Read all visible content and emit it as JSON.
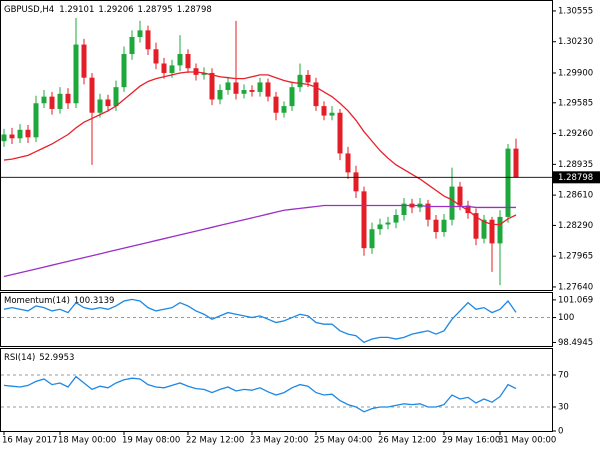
{
  "chart_data": [
    {
      "type": "candlestick",
      "symbol": "GBPUSD,H4",
      "categories": [
        "16 May 2017",
        null,
        null,
        null,
        null,
        null,
        null,
        "18 May 00:00",
        null,
        null,
        null,
        null,
        null,
        null,
        null,
        "19 May 08:00",
        null,
        null,
        null,
        null,
        null,
        null,
        null,
        "22 May 12:00",
        null,
        null,
        null,
        null,
        null,
        null,
        null,
        "23 May 20:00",
        null,
        null,
        null,
        null,
        null,
        null,
        null,
        "25 May 04:00",
        null,
        null,
        null,
        null,
        null,
        null,
        null,
        "26 May 12:00",
        null,
        null,
        null,
        null,
        null,
        null,
        null,
        "29 May 16:00",
        null,
        null,
        null,
        null,
        null,
        null,
        "31 May 00:00",
        null,
        null
      ],
      "open": [
        1.2918,
        1.2925,
        1.2921,
        1.293,
        1.2922,
        1.2958,
        1.2965,
        1.2952,
        1.2968,
        1.2958,
        1.302,
        1.2985,
        1.2948,
        1.2962,
        1.2955,
        1.2975,
        1.301,
        1.3028,
        1.3035,
        1.3015,
        1.3,
        1.299,
        1.2998,
        1.301,
        1.2995,
        1.2988,
        1.299,
        1.2962,
        1.2972,
        1.298,
        1.2968,
        1.2972,
        1.297,
        1.298,
        1.2965,
        1.2948,
        1.2955,
        1.2975,
        1.2988,
        1.298,
        1.2955,
        1.2945,
        1.2948,
        1.2905,
        1.2885,
        1.2865,
        1.2805,
        1.2825,
        1.283,
        1.2832,
        1.284,
        1.2852,
        1.2848,
        1.2852,
        1.2835,
        1.2822,
        1.2835,
        1.287,
        1.285,
        1.2842,
        1.2815,
        1.2835,
        1.281,
        1.2838,
        1.29101
      ],
      "high": [
        1.2931,
        1.2932,
        1.2936,
        1.2935,
        1.2966,
        1.2972,
        1.297,
        1.2975,
        1.2974,
        1.3048,
        1.3026,
        1.299,
        1.2968,
        1.2967,
        1.2982,
        1.3018,
        1.3035,
        1.3045,
        1.304,
        1.3022,
        1.3006,
        1.3004,
        1.303,
        1.3015,
        1.3,
        1.2996,
        1.2995,
        1.2978,
        1.2986,
        1.3045,
        1.2978,
        1.2977,
        1.2985,
        1.2984,
        1.297,
        1.296,
        1.2981,
        1.3,
        1.2993,
        1.2985,
        1.296,
        1.2955,
        1.2952,
        1.2912,
        1.2892,
        1.287,
        1.2832,
        1.2836,
        1.2838,
        1.2846,
        1.2858,
        1.2857,
        1.2858,
        1.2856,
        1.284,
        1.2841,
        1.289,
        1.2875,
        1.2855,
        1.2847,
        1.284,
        1.2838,
        1.2845,
        1.2915,
        1.29206
      ],
      "low": [
        1.2912,
        1.2915,
        1.2916,
        1.2916,
        1.2917,
        1.2953,
        1.2946,
        1.2947,
        1.2952,
        1.2953,
        1.2978,
        1.2893,
        1.2943,
        1.2949,
        1.295,
        1.297,
        1.3004,
        1.3022,
        1.3009,
        1.2994,
        1.2984,
        1.2985,
        1.2992,
        1.299,
        1.2982,
        1.2983,
        1.2956,
        1.2957,
        1.2967,
        1.2962,
        1.2963,
        1.2965,
        1.2965,
        1.296,
        1.294,
        1.2943,
        1.295,
        1.297,
        1.2975,
        1.295,
        1.294,
        1.294,
        1.2898,
        1.2878,
        1.2858,
        1.2797,
        1.2799,
        1.2819,
        1.2825,
        1.2826,
        1.2834,
        1.2842,
        1.2843,
        1.2828,
        1.2815,
        1.2817,
        1.2829,
        1.2845,
        1.2836,
        1.2808,
        1.281,
        1.278,
        1.2766,
        1.2832,
        1.28795
      ],
      "close": [
        1.2925,
        1.2921,
        1.293,
        1.2922,
        1.2958,
        1.2965,
        1.2952,
        1.2968,
        1.2958,
        1.302,
        1.2985,
        1.2948,
        1.2962,
        1.2955,
        1.2975,
        1.301,
        1.3028,
        1.3035,
        1.3015,
        1.3,
        1.299,
        1.2998,
        1.301,
        1.2995,
        1.2988,
        1.299,
        1.2962,
        1.2972,
        1.298,
        1.2968,
        1.2972,
        1.297,
        1.298,
        1.2965,
        1.2948,
        1.2955,
        1.2975,
        1.2988,
        1.298,
        1.2955,
        1.2945,
        1.2948,
        1.2905,
        1.2885,
        1.2865,
        1.2805,
        1.2825,
        1.283,
        1.2832,
        1.284,
        1.2852,
        1.2848,
        1.2852,
        1.2835,
        1.2822,
        1.2835,
        1.287,
        1.285,
        1.2842,
        1.2815,
        1.2835,
        1.281,
        1.2838,
        1.29101,
        1.28798
      ],
      "up_color": "#1ea83c",
      "down_color": "#e41e26",
      "overlays": [
        {
          "color": "#e8202a",
          "values": [
            1.2898,
            1.2899,
            1.2901,
            1.2903,
            1.2907,
            1.2911,
            1.2915,
            1.292,
            1.2925,
            1.2932,
            1.2938,
            1.2942,
            1.2946,
            1.295,
            1.2955,
            1.2962,
            1.2969,
            1.2976,
            1.2981,
            1.2984,
            1.2986,
            1.2988,
            1.299,
            1.2991,
            1.2991,
            1.299,
            1.2988,
            1.2986,
            1.2985,
            1.2984,
            1.2984,
            1.2986,
            1.2988,
            1.2988,
            1.2985,
            1.2982,
            1.298,
            1.2979,
            1.2978,
            1.2975,
            1.297,
            1.2965,
            1.2958,
            1.295,
            1.294,
            1.2928,
            1.2918,
            1.2908,
            1.29,
            1.2893,
            1.2888,
            1.2883,
            1.2878,
            1.2872,
            1.2866,
            1.286,
            1.2856,
            1.285,
            1.2845,
            1.2838,
            1.2833,
            1.283,
            1.283,
            1.2836,
            1.284
          ]
        },
        {
          "color": "#9a30c8",
          "values": [
            1.2775,
            1.2777,
            1.2779,
            1.2781,
            1.2783,
            1.2785,
            1.2787,
            1.2789,
            1.2791,
            1.2793,
            1.2795,
            1.2797,
            1.2799,
            1.2801,
            1.2803,
            1.2805,
            1.2807,
            1.2809,
            1.2811,
            1.2813,
            1.2815,
            1.2817,
            1.2819,
            1.2821,
            1.2823,
            1.2825,
            1.2827,
            1.2829,
            1.2831,
            1.2833,
            1.2835,
            1.2837,
            1.2839,
            1.2841,
            1.2843,
            1.2845,
            1.2846,
            1.2847,
            1.2848,
            1.2849,
            1.285,
            1.285,
            1.285,
            1.285,
            1.285,
            1.285,
            1.285,
            1.285,
            1.285,
            1.285,
            1.285,
            1.285,
            1.285,
            1.2849,
            1.2849,
            1.2849,
            1.2849,
            1.2849,
            1.2849,
            1.2848,
            1.2848,
            1.2848,
            1.2848,
            1.2848,
            1.2848
          ]
        }
      ],
      "ylim": [
        1.27608,
        1.3066
      ],
      "yticks": [
        1.30555,
        {
          "value": 1.3023,
          "label": "1.30230"
        },
        {
          "value": 1.299,
          "label": "1.29900"
        },
        1.29585,
        {
          "value": 1.2926,
          "label": "1.29260"
        },
        1.28935,
        {
          "value": 1.2861,
          "label": "1.28610"
        },
        {
          "value": 1.2829,
          "label": "1.28290"
        },
        1.27965,
        {
          "value": 1.2764,
          "label": "1.27640"
        }
      ]
    },
    {
      "type": "line",
      "title": "Momentum(14)",
      "color": "#1e88e5",
      "values": [
        100.5,
        100.6,
        100.5,
        100.4,
        100.7,
        100.6,
        100.4,
        100.5,
        100.3,
        100.9,
        100.6,
        100.5,
        100.6,
        100.5,
        100.7,
        101.0,
        101.1,
        101.0,
        100.6,
        100.4,
        100.5,
        100.6,
        100.9,
        100.7,
        100.4,
        100.2,
        99.9,
        100.1,
        100.3,
        100.2,
        100.1,
        100.0,
        100.1,
        99.9,
        99.7,
        99.8,
        100.0,
        100.2,
        100.1,
        99.7,
        99.6,
        99.6,
        99.2,
        99.0,
        98.9,
        98.5,
        98.7,
        98.8,
        98.8,
        98.7,
        98.8,
        99.0,
        99.1,
        99.2,
        99.0,
        99.2,
        99.9,
        100.4,
        100.9,
        100.5,
        100.6,
        100.3,
        100.5,
        101.0,
        100.3139
      ],
      "ylim": [
        98.28,
        101.485
      ],
      "yticks": [
        101.069,
        100,
        98.4945
      ],
      "levels": [
        100
      ]
    },
    {
      "type": "line",
      "title": "RSI(14)",
      "color": "#1e88e5",
      "values": [
        57,
        56,
        55,
        57,
        62,
        65,
        58,
        60,
        55,
        68,
        60,
        52,
        56,
        54,
        60,
        64,
        66,
        65,
        58,
        55,
        54,
        57,
        60,
        56,
        53,
        52,
        48,
        52,
        55,
        50,
        52,
        51,
        54,
        49,
        45,
        48,
        54,
        58,
        56,
        48,
        45,
        46,
        38,
        33,
        30,
        24,
        28,
        30,
        30,
        32,
        34,
        33,
        34,
        30,
        30,
        33,
        45,
        40,
        42,
        35,
        40,
        36,
        43,
        58,
        52.9953
      ],
      "ylim": [
        0,
        102.5
      ],
      "yticks": [
        70,
        30,
        0
      ],
      "levels": [
        70,
        30
      ]
    }
  ]
}
